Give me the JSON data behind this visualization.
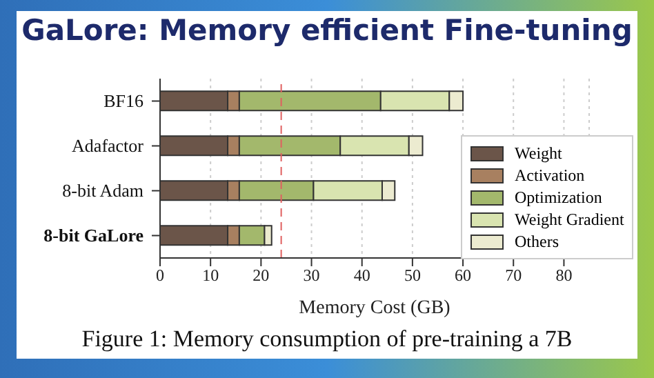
{
  "chart_data": {
    "type": "bar",
    "title": "GaLore: Memory efficient Fine-tuning",
    "orientation": "horizontal",
    "stacked": true,
    "categories": [
      "BF16",
      "Adafactor",
      "8-bit Adam",
      "8-bit GaLore"
    ],
    "series": [
      {
        "name": "Weight",
        "color": "#6b5549",
        "values": [
          13.4,
          13.4,
          13.4,
          13.4
        ]
      },
      {
        "name": "Activation",
        "color": "#a88060",
        "values": [
          2.3,
          2.3,
          2.3,
          2.3
        ]
      },
      {
        "name": "Optimization",
        "color": "#a3b86c",
        "values": [
          28,
          20,
          14.7,
          5
        ]
      },
      {
        "name": "Weight Gradient",
        "color": "#d9e4b0",
        "values": [
          13.6,
          13.6,
          13.6,
          null
        ]
      },
      {
        "name": "Others",
        "color": "#ecebd0",
        "values": [
          2.7,
          2.7,
          2.5,
          1.4
        ]
      }
    ],
    "xlabel": "Memory Cost (GB)",
    "xlim": [
      0,
      85
    ],
    "xticks": [
      0,
      10,
      20,
      30,
      40,
      50,
      60,
      70,
      80
    ],
    "grid": "x",
    "legend": "bottom right",
    "ref_lines": [
      {
        "axis": "x",
        "value": 24,
        "color": "#e06060",
        "line_style": "dashed"
      }
    ],
    "annotations": [
      "Figure 1:  Memory consumption of pre-training a 7B"
    ]
  }
}
